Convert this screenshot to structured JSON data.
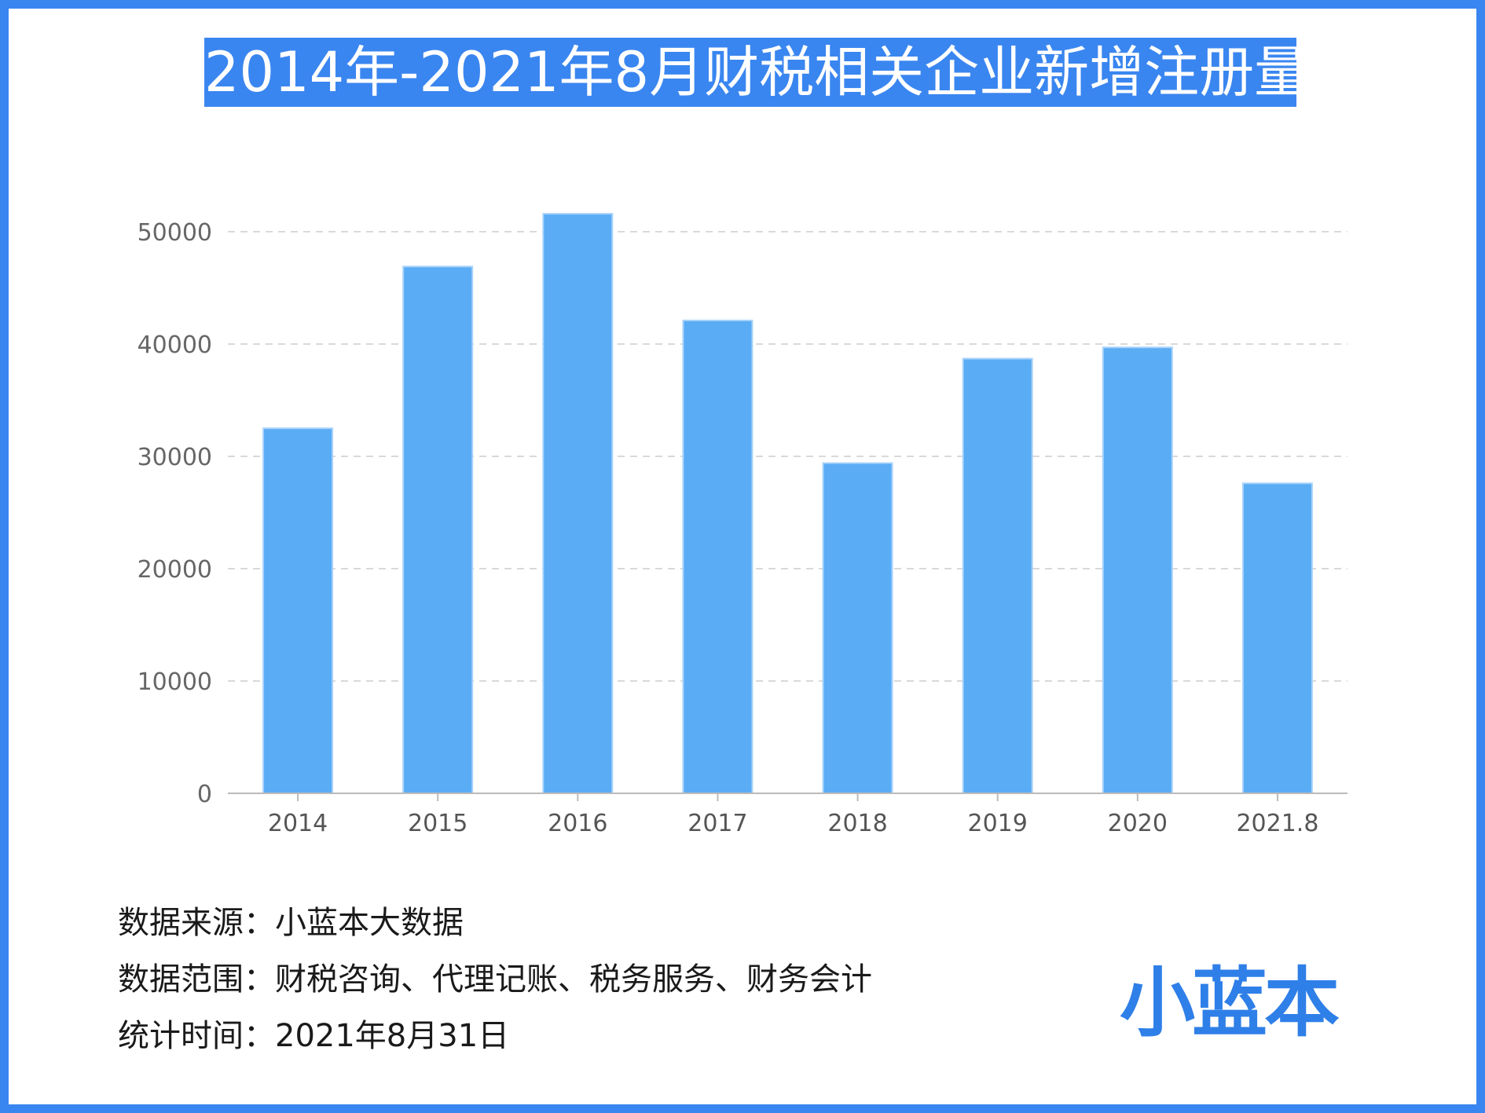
{
  "header": {
    "title": "2014年-2021年8月财税相关企业新增注册量"
  },
  "chart_data": {
    "type": "bar",
    "title": "2014年-2021年8月财税相关企业新增注册量",
    "categories": [
      "2014",
      "2015",
      "2016",
      "2017",
      "2018",
      "2019",
      "2020",
      "2021.8"
    ],
    "values": [
      32500,
      46900,
      51600,
      42100,
      29400,
      38700,
      39700,
      27600
    ],
    "ylim": [
      0,
      50000
    ],
    "yticks": [
      "0",
      "10000",
      "20000",
      "30000",
      "40000",
      "50000"
    ],
    "grid": true,
    "legend": "none",
    "bar_color": "#5aacf4"
  },
  "notes": {
    "source": "数据来源：小蓝本大数据",
    "scope": "数据范围：财税咨询、代理记账、税务服务、财务会计",
    "time": "统计时间：2021年8月31日"
  },
  "logo": {
    "text": "小蓝本"
  },
  "colors": {
    "border": "#3a86f0",
    "title_bg": "#3a86f0",
    "logo": "#2f7fe8"
  }
}
